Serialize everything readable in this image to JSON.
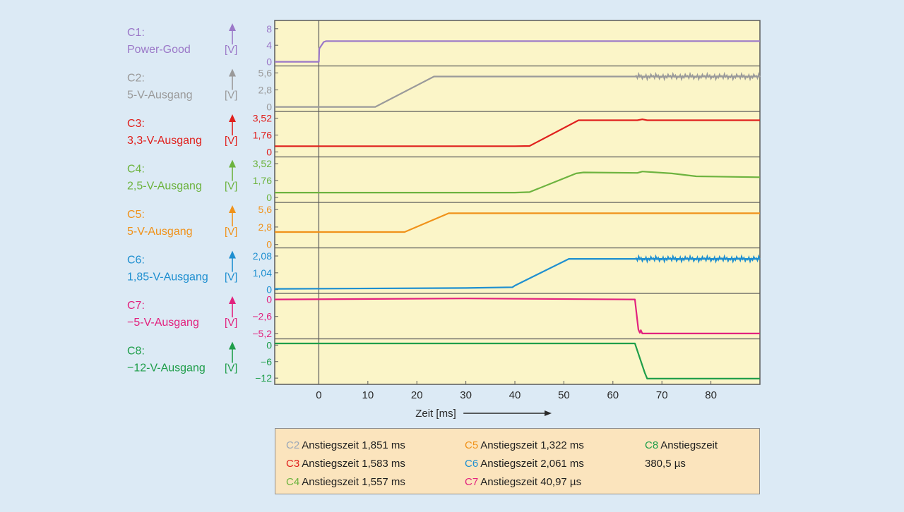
{
  "chart_data": {
    "type": "line",
    "xlabel": "Zeit [ms]",
    "xlim": [
      -9,
      90
    ],
    "xticks": [
      0,
      10,
      20,
      30,
      40,
      50,
      60,
      70,
      80
    ],
    "xtick_labels": [
      "0",
      "10",
      "20",
      "30",
      "40",
      "50",
      "60",
      "70",
      "80"
    ],
    "unit_label": "[V]",
    "series": [
      {
        "id": "C1",
        "name": "Power-Good",
        "name_line1": "C1:",
        "name_line2": "Power-Good",
        "color": "#9b78c8",
        "ylim": [
          -0.5,
          9.5
        ],
        "ytick_values": [
          0,
          4,
          8
        ],
        "ytick_labels": [
          "0",
          "4",
          "8"
        ],
        "points": [
          [
            -9,
            0
          ],
          [
            0,
            0
          ],
          [
            0.1,
            3.2
          ],
          [
            1,
            4.8
          ],
          [
            1.5,
            5
          ],
          [
            90,
            5
          ]
        ]
      },
      {
        "id": "C2",
        "name": "5-V-Ausgang",
        "name_line1": "C2:",
        "name_line2": "5-V-Ausgang",
        "color": "#9a9a9a",
        "ylim": [
          -0.4,
          6.4
        ],
        "ytick_values": [
          0,
          2.8,
          5.6
        ],
        "ytick_labels": [
          "0",
          "2,8",
          "5,6"
        ],
        "noisy_from": 64.5,
        "points": [
          [
            -9,
            0
          ],
          [
            11.5,
            0
          ],
          [
            23.5,
            5.0
          ],
          [
            90,
            5.0
          ]
        ]
      },
      {
        "id": "C3",
        "name": "3,3-V-Ausgang",
        "name_line1": "C3:",
        "name_line2": "3,3-V-Ausgang",
        "color": "#e0201d",
        "ylim": [
          -0.3,
          4.0
        ],
        "ytick_values": [
          0,
          1.76,
          3.52
        ],
        "ytick_labels": [
          "0",
          "1,76",
          "3,52"
        ],
        "points": [
          [
            -9,
            0.6
          ],
          [
            40,
            0.6
          ],
          [
            43,
            0.62
          ],
          [
            53,
            3.3
          ],
          [
            65,
            3.3
          ],
          [
            66,
            3.4
          ],
          [
            67,
            3.3
          ],
          [
            90,
            3.3
          ]
        ]
      },
      {
        "id": "C4",
        "name": "2,5-V-Ausgang",
        "name_line1": "C4:",
        "name_line2": "2,5-V-Ausgang",
        "color": "#6db33f",
        "ylim": [
          -0.3,
          4.0
        ],
        "ytick_values": [
          0,
          1.76,
          3.52
        ],
        "ytick_labels": [
          "0",
          "1,76",
          "3,52"
        ],
        "points": [
          [
            -9,
            0.5
          ],
          [
            40,
            0.5
          ],
          [
            43,
            0.55
          ],
          [
            52.5,
            2.5
          ],
          [
            54,
            2.6
          ],
          [
            65,
            2.55
          ],
          [
            66,
            2.7
          ],
          [
            72,
            2.5
          ],
          [
            77,
            2.2
          ],
          [
            90,
            2.1
          ]
        ]
      },
      {
        "id": "C5",
        "name": "5-V-Ausgang",
        "name_line1": "C5:",
        "name_line2": "5-V-Ausgang",
        "color": "#f0921a",
        "ylim": [
          -0.2,
          6.4
        ],
        "ytick_values": [
          0,
          2.8,
          5.6
        ],
        "ytick_labels": [
          "0",
          "2,8",
          "5,6"
        ],
        "points": [
          [
            -9,
            2.0
          ],
          [
            17.5,
            2.0
          ],
          [
            26.5,
            5.0
          ],
          [
            90,
            5.0
          ]
        ]
      },
      {
        "id": "C6",
        "name": "1,85-V-Ausgang",
        "name_line1": "C6:",
        "name_line2": "1,85-V-Ausgang",
        "color": "#1e8fd0",
        "ylim": [
          -0.1,
          2.45
        ],
        "ytick_values": [
          0,
          1.04,
          2.08
        ],
        "ytick_labels": [
          "0",
          "1,04",
          "2,08"
        ],
        "noisy_from": 64.5,
        "points": [
          [
            -9,
            0.05
          ],
          [
            30,
            0.1
          ],
          [
            39.5,
            0.15
          ],
          [
            40,
            0.25
          ],
          [
            51,
            1.9
          ],
          [
            65,
            1.9
          ],
          [
            90,
            1.9
          ]
        ]
      },
      {
        "id": "C7",
        "name": "−5-V-Ausgang",
        "name_line1": "C7:",
        "name_line2": "−5-V-Ausgang",
        "color": "#e2227e",
        "ylim": [
          -5.7,
          0.6
        ],
        "ytick_values": [
          0,
          -2.6,
          -5.2
        ],
        "ytick_labels": [
          "0",
          "−2,6",
          "−5,2"
        ],
        "points": [
          [
            -9,
            0
          ],
          [
            30,
            0.15
          ],
          [
            64.5,
            0
          ],
          [
            64.8,
            -2
          ],
          [
            65.2,
            -4.6
          ],
          [
            65.5,
            -5.1
          ],
          [
            65.7,
            -4.7
          ],
          [
            66,
            -5.2
          ],
          [
            90,
            -5.2
          ]
        ]
      },
      {
        "id": "C8",
        "name": "−12-V-Ausgang",
        "name_line1": "C8:",
        "name_line2": "−12-V-Ausgang",
        "color": "#1f9e4a",
        "ylim": [
          -13.5,
          1.5
        ],
        "ytick_values": [
          0,
          -6,
          -12
        ],
        "ytick_labels": [
          "0",
          "−6",
          "−12"
        ],
        "points": [
          [
            -9,
            0.6
          ],
          [
            64.5,
            0.6
          ],
          [
            66.5,
            -10
          ],
          [
            67,
            -12.2
          ],
          [
            90,
            -12.2
          ]
        ]
      }
    ]
  },
  "legend_box": {
    "entries": [
      {
        "code": "C2",
        "text": "Anstiegszeit 1,851 ms",
        "color": "#9aa7b8",
        "col": 0,
        "row": 0
      },
      {
        "code": "C3",
        "text": "Anstiegszeit 1,583 ms",
        "color": "#e0201d",
        "col": 0,
        "row": 1
      },
      {
        "code": "C4",
        "text": "Anstiegszeit 1,557 ms",
        "color": "#6db33f",
        "col": 0,
        "row": 2
      },
      {
        "code": "C5",
        "text": "Anstiegszeit 1,322 ms",
        "color": "#f0921a",
        "col": 1,
        "row": 0
      },
      {
        "code": "C6",
        "text": "Anstiegszeit 2,061 ms",
        "color": "#1e8fd0",
        "col": 1,
        "row": 1
      },
      {
        "code": "C7",
        "text": "Anstiegszeit 40,97 µs",
        "color": "#e2227e",
        "col": 1,
        "row": 2
      },
      {
        "code": "C8",
        "text": "Anstiegszeit",
        "color": "#1f9e4a",
        "col": 2,
        "row": 0
      },
      {
        "code": "",
        "text": "380,5 µs",
        "color": "#1e1e1e",
        "col": 2,
        "row": 1
      }
    ]
  },
  "colors": {
    "background": "#dceaf5",
    "plot_background": "#fbf5c8",
    "grid": "#5a5a5a",
    "legend_background": "#fbe4bd"
  }
}
